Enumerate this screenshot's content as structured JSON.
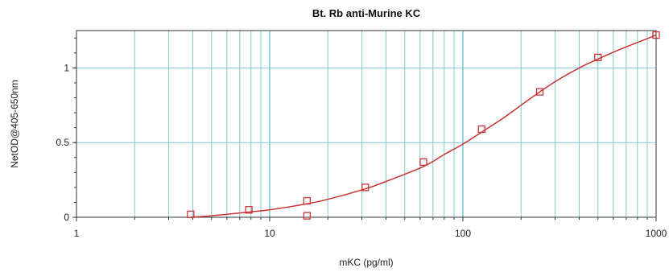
{
  "chart_data": {
    "type": "scatter",
    "title": "Bt. Rb anti-Murine KC",
    "xlabel": "mKC (pg/ml)",
    "ylabel": "NetOD@405-650nm",
    "xscale": "log",
    "xlim": [
      1,
      1000
    ],
    "ylim": [
      0,
      1.25
    ],
    "xticks": [
      1,
      10,
      100,
      1000
    ],
    "xtick_labels": [
      "1",
      "10",
      "100",
      "1000"
    ],
    "yticks": [
      0,
      0.5,
      1
    ],
    "ytick_labels": [
      "0",
      "0.5",
      "1"
    ],
    "grid": true,
    "series": [
      {
        "type": "scatter",
        "marker": "open-square",
        "x": [
          3.9,
          7.8,
          15.6,
          15.6,
          31.25,
          62.5,
          125,
          250,
          500,
          1000
        ],
        "y": [
          0.02,
          0.05,
          0.01,
          0.11,
          0.2,
          0.37,
          0.59,
          0.84,
          1.07,
          1.22
        ]
      },
      {
        "type": "line",
        "x": [
          3.9,
          5,
          7.8,
          10,
          15.6,
          20,
          31.25,
          40,
          62.5,
          80,
          100,
          125,
          160,
          200,
          250,
          320,
          400,
          500,
          640,
          800,
          1000
        ],
        "y": [
          0.0,
          0.01,
          0.035,
          0.05,
          0.09,
          0.12,
          0.19,
          0.24,
          0.34,
          0.42,
          0.49,
          0.57,
          0.66,
          0.75,
          0.84,
          0.93,
          1.0,
          1.06,
          1.12,
          1.17,
          1.22
        ]
      }
    ],
    "colors": {
      "grid": "#7fcbd9",
      "curve": "#cc3333",
      "marker": "#cc3333",
      "axis": "#333333"
    }
  }
}
